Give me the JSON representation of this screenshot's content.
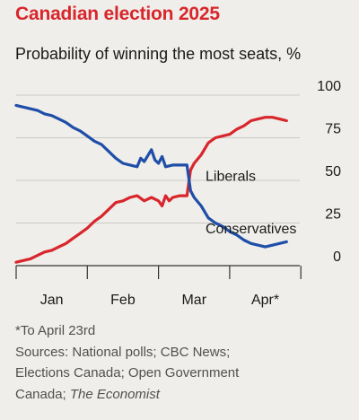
{
  "title": "Canadian election 2025",
  "subtitle": "Probability of winning the most seats, %",
  "footnote": {
    "asterisk": "*To April 23rd",
    "sources_line1": "Sources: National polls; CBC News;",
    "sources_line2": "Elections Canada; Open Government",
    "sources_line3_plain": "Canada; ",
    "sources_line3_italic": "The Economist"
  },
  "colors": {
    "liberals": "#d8262c",
    "conservatives": "#1f4ea8",
    "grid": "#c9c9c6",
    "axis": "#333333"
  },
  "chart_data": {
    "type": "line",
    "title": "Canadian election 2025",
    "subtitle": "Probability of winning the most seats, %",
    "ylim": [
      0,
      100
    ],
    "y_ticks": [
      0,
      25,
      50,
      75,
      100
    ],
    "x_tick_labels": [
      "Jan",
      "Feb",
      "Mar",
      "Apr*"
    ],
    "x_label_positions": [
      0.5,
      1.5,
      2.5,
      3.5
    ],
    "x_range": [
      0,
      4.3
    ],
    "grid": true,
    "series": [
      {
        "name": "Liberals",
        "color": "#d8262c",
        "label_near_x": 2.4,
        "points": [
          [
            0,
            2
          ],
          [
            0.1,
            3
          ],
          [
            0.2,
            4
          ],
          [
            0.3,
            6
          ],
          [
            0.4,
            8
          ],
          [
            0.5,
            9
          ],
          [
            0.6,
            11
          ],
          [
            0.7,
            13
          ],
          [
            0.8,
            16
          ],
          [
            0.9,
            19
          ],
          [
            1.0,
            22
          ],
          [
            1.1,
            26
          ],
          [
            1.2,
            29
          ],
          [
            1.3,
            33
          ],
          [
            1.4,
            37
          ],
          [
            1.5,
            38
          ],
          [
            1.6,
            40
          ],
          [
            1.7,
            41
          ],
          [
            1.8,
            38
          ],
          [
            1.9,
            40
          ],
          [
            2.0,
            38
          ],
          [
            2.05,
            35
          ],
          [
            2.1,
            41
          ],
          [
            2.15,
            38
          ],
          [
            2.2,
            40
          ],
          [
            2.3,
            41
          ],
          [
            2.4,
            41
          ],
          [
            2.45,
            56
          ],
          [
            2.5,
            60
          ],
          [
            2.6,
            65
          ],
          [
            2.7,
            72
          ],
          [
            2.8,
            75
          ],
          [
            2.9,
            76
          ],
          [
            3.0,
            77
          ],
          [
            3.1,
            80
          ],
          [
            3.2,
            82
          ],
          [
            3.3,
            85
          ],
          [
            3.4,
            86
          ],
          [
            3.5,
            87
          ],
          [
            3.6,
            87
          ],
          [
            3.7,
            86
          ],
          [
            3.8,
            85
          ]
        ]
      },
      {
        "name": "Conservatives",
        "color": "#1f4ea8",
        "label_near_x": 2.4,
        "points": [
          [
            0,
            94
          ],
          [
            0.1,
            93
          ],
          [
            0.2,
            92
          ],
          [
            0.3,
            91
          ],
          [
            0.4,
            89
          ],
          [
            0.5,
            88
          ],
          [
            0.6,
            86
          ],
          [
            0.7,
            84
          ],
          [
            0.8,
            81
          ],
          [
            0.9,
            79
          ],
          [
            1.0,
            76
          ],
          [
            1.1,
            73
          ],
          [
            1.2,
            71
          ],
          [
            1.3,
            67
          ],
          [
            1.4,
            63
          ],
          [
            1.5,
            60
          ],
          [
            1.6,
            59
          ],
          [
            1.7,
            58
          ],
          [
            1.75,
            63
          ],
          [
            1.8,
            61
          ],
          [
            1.9,
            68
          ],
          [
            1.95,
            62
          ],
          [
            2.0,
            60
          ],
          [
            2.05,
            64
          ],
          [
            2.1,
            58
          ],
          [
            2.2,
            59
          ],
          [
            2.3,
            59
          ],
          [
            2.4,
            59
          ],
          [
            2.45,
            44
          ],
          [
            2.5,
            40
          ],
          [
            2.6,
            35
          ],
          [
            2.7,
            28
          ],
          [
            2.8,
            25
          ],
          [
            2.9,
            23
          ],
          [
            3.0,
            20
          ],
          [
            3.1,
            18
          ],
          [
            3.2,
            15
          ],
          [
            3.3,
            13
          ],
          [
            3.4,
            12
          ],
          [
            3.5,
            11
          ],
          [
            3.6,
            12
          ],
          [
            3.7,
            13
          ],
          [
            3.8,
            14
          ]
        ]
      }
    ]
  }
}
